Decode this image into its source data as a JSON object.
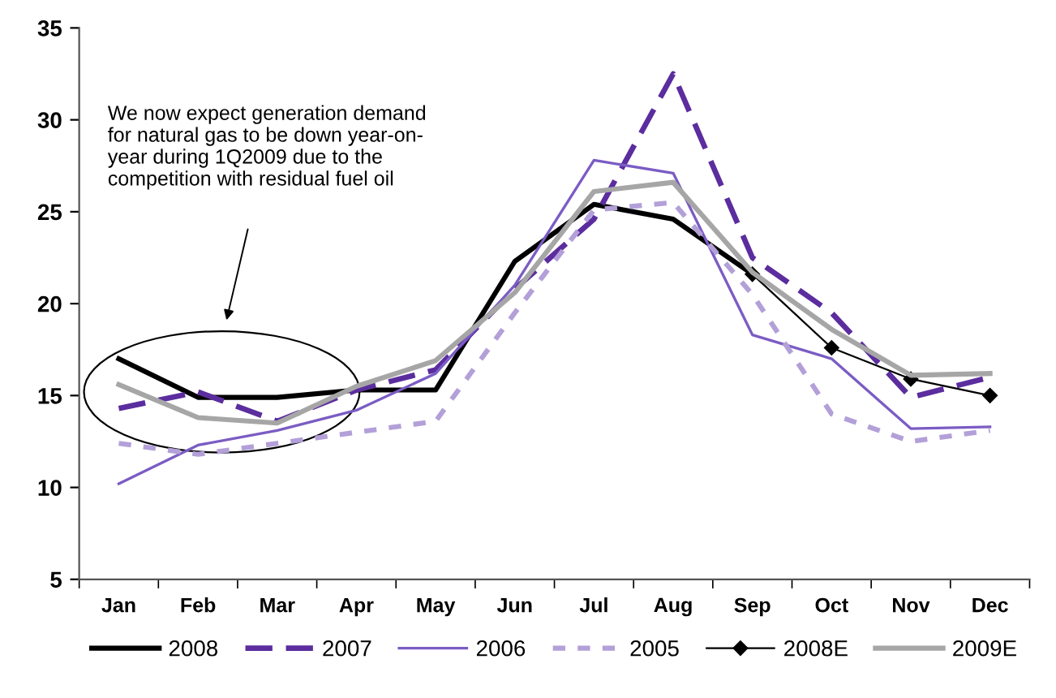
{
  "chart_data": {
    "type": "line",
    "categories": [
      "Jan",
      "Feb",
      "Mar",
      "Apr",
      "May",
      "Jun",
      "Jul",
      "Aug",
      "Sep",
      "Oct",
      "Nov",
      "Dec"
    ],
    "ylim": [
      5,
      35
    ],
    "yticks": [
      5,
      10,
      15,
      20,
      25,
      30,
      35
    ],
    "grid": false,
    "legend": "bottom",
    "annotations": [
      "We now expect generation demand\nfor natural gas to be down year-on-\nyear during 1Q2009 due to the\ncompetition with residual fuel oil"
    ],
    "series": [
      {
        "name": "2008",
        "color": "#000000",
        "line_style": "solid",
        "values": [
          17.0,
          14.9,
          14.9,
          15.3,
          15.3,
          22.3,
          25.4,
          24.6,
          21.6,
          null,
          null,
          null
        ]
      },
      {
        "name": "2007",
        "color": "#5b2d9e",
        "line_style": "dashed",
        "values": [
          14.3,
          15.2,
          13.6,
          15.3,
          16.4,
          20.8,
          24.6,
          32.5,
          22.5,
          19.5,
          14.9,
          16.0
        ]
      },
      {
        "name": "2006",
        "color": "#7b5cc4",
        "line_style": "solid",
        "values": [
          10.2,
          12.3,
          13.1,
          14.2,
          16.2,
          21.0,
          27.8,
          27.1,
          18.3,
          17.0,
          13.2,
          13.3
        ]
      },
      {
        "name": "2005",
        "color": "#b3a0d8",
        "line_style": "dotted",
        "values": [
          12.4,
          11.8,
          12.4,
          13.0,
          13.6,
          19.5,
          25.1,
          25.5,
          20.5,
          14.0,
          12.5,
          13.1
        ]
      },
      {
        "name": "2008E",
        "color": "#000000",
        "line_style": "solid",
        "marker": "diamond",
        "values": [
          null,
          null,
          null,
          null,
          null,
          null,
          null,
          null,
          21.6,
          17.6,
          15.9,
          15.0
        ]
      },
      {
        "name": "2009E",
        "color": "#a6a6a6",
        "line_style": "solid",
        "values": [
          15.6,
          13.8,
          13.5,
          15.5,
          16.9,
          20.6,
          26.1,
          26.6,
          21.7,
          18.6,
          16.1,
          16.2
        ]
      }
    ]
  }
}
